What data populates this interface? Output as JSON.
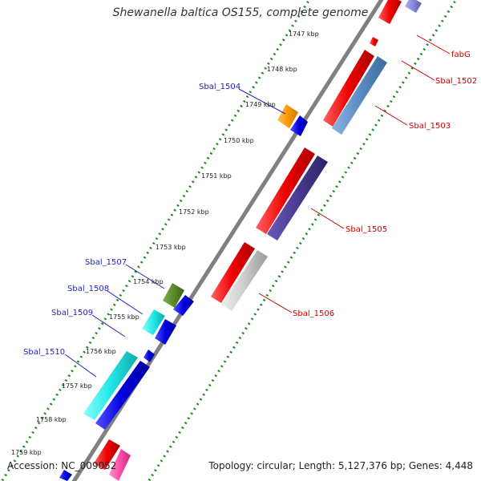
{
  "title": "Shewanella baltica OS155, complete genome",
  "footer": {
    "accession": "Accession: NC_009052",
    "summary": "Topology: circular; Length: 5,127,376 bp; Genes: 4,448"
  },
  "ticks": [
    "1747 kbp",
    "1748 kbp",
    "1749 kbp",
    "1750 kbp",
    "1751 kbp",
    "1752 kbp",
    "1753 kbp",
    "1754 kbp",
    "1755 kbp",
    "1756 kbp",
    "1757 kbp",
    "1758 kbp",
    "1759 kbp"
  ],
  "left_gene_labels": [
    "Sbal_1504",
    "Sbal_1507",
    "Sbal_1508",
    "Sbal_1509",
    "Sbal_1510"
  ],
  "right_gene_labels": [
    "fabG",
    "Sbal_1502",
    "Sbal_1503",
    "Sbal_1505",
    "Sbal_1506"
  ],
  "colors": {
    "backbone": "#808080",
    "tick_dots": "#1a8a1a",
    "left_label": "#1f1fbf",
    "right_label": "#cc0000",
    "gene_red": "#ee0000",
    "gene_blue": "#0000dd",
    "gene_steelblue": "#5b8cc4",
    "gene_purple": "#4a3a90",
    "gene_silver": "#cccccc",
    "gene_cyan": "#22e6e6",
    "gene_olive": "#5a8a2a",
    "gene_orange": "#ff9900",
    "gene_lavender": "#8888dd",
    "gene_pink": "#ff4fa7"
  }
}
